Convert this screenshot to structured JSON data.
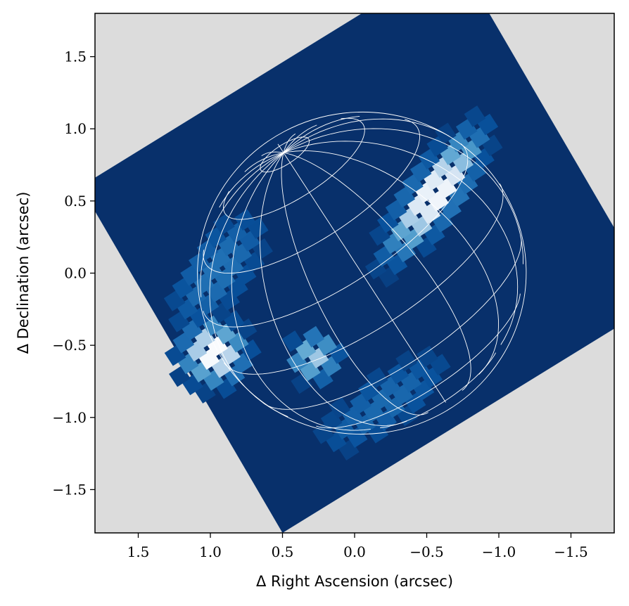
{
  "chart_data": {
    "type": "heatmap",
    "title": "",
    "xlabel": "Δ Right Ascension (arcsec)",
    "ylabel": "Δ Declination (arcsec)",
    "xlim": [
      1.8,
      -1.8
    ],
    "ylim": [
      -1.8,
      1.8
    ],
    "x_inverted": true,
    "xticks": [
      1.5,
      1.0,
      0.5,
      0.0,
      -0.5,
      -1.0,
      -1.5
    ],
    "xtick_labels": [
      "1.5",
      "1.0",
      "0.5",
      "0.0",
      "−0.5",
      "−1.0",
      "−1.5"
    ],
    "yticks": [
      1.5,
      1.0,
      0.5,
      0.0,
      -0.5,
      -1.0,
      -1.5
    ],
    "ytick_labels": [
      "1.5",
      "1.0",
      "0.5",
      "0.0",
      "−0.5",
      "−1.0",
      "−1.5"
    ],
    "colormap": "Blues_r",
    "colors": {
      "background": "#dcdcdc",
      "field": "#08306b",
      "grid_overlay": "#ffffff"
    },
    "footprint_corners": [
      [
        -0.7,
        2.2
      ],
      [
        -2.1,
        -0.2
      ],
      [
        0.5,
        -1.8
      ],
      [
        1.9,
        0.6
      ]
    ],
    "bright_regions": [
      {
        "name": "north-east limb arc",
        "x": -0.55,
        "y": 0.55,
        "length": 1.05,
        "width": 0.32,
        "angle_deg": -55,
        "peak": 1.0
      },
      {
        "name": "south-west spot",
        "x": 0.98,
        "y": -0.55,
        "size": 0.22,
        "peak": 1.0
      },
      {
        "name": "south central spot",
        "x": 0.28,
        "y": -0.58,
        "size": 0.16,
        "peak": 0.85
      },
      {
        "name": "west diffuse lobe",
        "x": 0.95,
        "y": 0.02,
        "length": 0.9,
        "width": 0.4,
        "angle_deg": -55,
        "peak": 0.45
      },
      {
        "name": "south diffuse band",
        "x": -0.2,
        "y": -0.9,
        "length": 1.0,
        "width": 0.35,
        "angle_deg": -35,
        "peak": 0.4
      }
    ],
    "planet_overlay": {
      "center": [
        -0.05,
        0.0
      ],
      "radius_x": 1.14,
      "radius_y": 1.14,
      "polar_flattening": 0.93,
      "pole_angle_deg": 33,
      "sub_observer_latitude_deg": 20,
      "latitude_lines_deg": [
        -80,
        -60,
        -40,
        -20,
        0,
        20,
        40,
        60,
        80
      ],
      "longitude_step_deg": 20
    },
    "grid": false
  }
}
